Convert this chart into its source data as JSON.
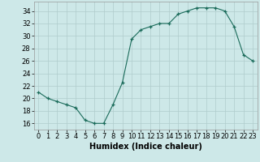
{
  "x": [
    0,
    1,
    2,
    3,
    4,
    5,
    6,
    7,
    8,
    9,
    10,
    11,
    12,
    13,
    14,
    15,
    16,
    17,
    18,
    19,
    20,
    21,
    22,
    23
  ],
  "y": [
    21,
    20,
    19.5,
    19,
    18.5,
    16.5,
    16,
    16,
    19,
    22.5,
    29.5,
    31,
    31.5,
    32,
    32,
    33.5,
    34,
    34.5,
    34.5,
    34.5,
    34,
    31.5,
    27,
    26
  ],
  "line_color": "#1a6b5a",
  "marker_color": "#1a6b5a",
  "bg_color": "#cde8e8",
  "grid_color": "#b0cccc",
  "xlabel": "Humidex (Indice chaleur)",
  "xlim": [
    -0.5,
    23.5
  ],
  "ylim": [
    15,
    35.5
  ],
  "yticks": [
    16,
    18,
    20,
    22,
    24,
    26,
    28,
    30,
    32,
    34
  ],
  "xticks": [
    0,
    1,
    2,
    3,
    4,
    5,
    6,
    7,
    8,
    9,
    10,
    11,
    12,
    13,
    14,
    15,
    16,
    17,
    18,
    19,
    20,
    21,
    22,
    23
  ],
  "xlabel_fontsize": 7,
  "tick_fontsize": 6
}
